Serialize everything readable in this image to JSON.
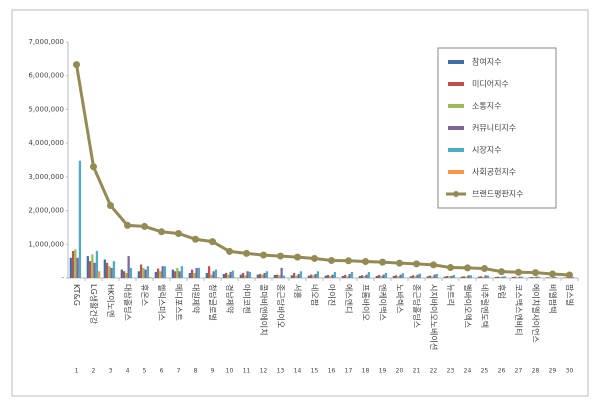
{
  "chart_data": {
    "type": "bar-line",
    "categories": [
      "KT&G",
      "LG생활건강",
      "HK이노엔",
      "대상홀딩스",
      "휴온스",
      "헬릭스미스",
      "메디포스트",
      "대원제약",
      "청담글로벌",
      "경남제약",
      "아미코젠",
      "콜마비앤에이치",
      "종근당바이오",
      "서흥",
      "네오팜",
      "아이진",
      "에스엔디",
      "프롬바이오",
      "엔케이맥스",
      "노바렉스",
      "종근당홀딩스",
      "시지바이오노베이션",
      "뉴트리",
      "벨바이오엑스",
      "네추럴엔도텍",
      "휴럼",
      "코스맥스엔비티",
      "에이치엘사이언스",
      "비엘팜텍",
      "팜스빌"
    ],
    "ranks": [
      1,
      2,
      3,
      4,
      5,
      6,
      7,
      8,
      9,
      10,
      11,
      12,
      13,
      14,
      15,
      16,
      17,
      18,
      19,
      20,
      21,
      22,
      23,
      24,
      25,
      26,
      27,
      28,
      29,
      30
    ],
    "series": [
      {
        "name": "참여지수",
        "color": "#3f6fa8",
        "kind": "bar",
        "values": [
          600000,
          650000,
          550000,
          250000,
          200000,
          180000,
          250000,
          150000,
          150000,
          120000,
          100000,
          100000,
          90000,
          80000,
          70000,
          70000,
          60000,
          60000,
          60000,
          60000,
          50000,
          50000,
          40000,
          40000,
          40000,
          30000,
          30000,
          20000,
          20000,
          10000
        ]
      },
      {
        "name": "미디어지수",
        "color": "#c0504d",
        "kind": "bar",
        "values": [
          800000,
          500000,
          450000,
          200000,
          400000,
          280000,
          200000,
          250000,
          350000,
          150000,
          150000,
          120000,
          100000,
          150000,
          100000,
          90000,
          90000,
          80000,
          90000,
          80000,
          80000,
          70000,
          60000,
          50000,
          50000,
          40000,
          40000,
          30000,
          20000,
          20000
        ]
      },
      {
        "name": "소통지수",
        "color": "#9bbb59",
        "kind": "bar",
        "values": [
          850000,
          700000,
          350000,
          150000,
          300000,
          200000,
          300000,
          150000,
          100000,
          100000,
          80000,
          100000,
          80000,
          70000,
          80000,
          60000,
          50000,
          60000,
          60000,
          50000,
          50000,
          40000,
          50000,
          40000,
          30000,
          30000,
          20000,
          30000,
          20000,
          10000
        ]
      },
      {
        "name": "커뮤니티지수",
        "color": "#8064a2",
        "kind": "bar",
        "values": [
          600000,
          450000,
          300000,
          650000,
          250000,
          350000,
          200000,
          300000,
          200000,
          180000,
          200000,
          150000,
          300000,
          120000,
          120000,
          100000,
          120000,
          100000,
          100000,
          100000,
          100000,
          100000,
          60000,
          80000,
          80000,
          40000,
          40000,
          40000,
          30000,
          20000
        ]
      },
      {
        "name": "시장지수",
        "color": "#4bacc6",
        "kind": "bar",
        "values": [
          3480000,
          800000,
          500000,
          300000,
          350000,
          350000,
          350000,
          300000,
          250000,
          220000,
          180000,
          200000,
          70000,
          200000,
          200000,
          180000,
          180000,
          180000,
          150000,
          140000,
          130000,
          120000,
          90000,
          80000,
          70000,
          50000,
          40000,
          40000,
          30000,
          30000
        ]
      },
      {
        "name": "사회공헌지수",
        "color": "#f79646",
        "kind": "bar",
        "values": [
          0,
          200000,
          0,
          0,
          30000,
          0,
          0,
          0,
          30000,
          20000,
          20000,
          10000,
          10000,
          0,
          10000,
          20000,
          10000,
          10000,
          10000,
          10000,
          10000,
          10000,
          10000,
          10000,
          10000,
          0,
          0,
          0,
          0,
          0
        ]
      },
      {
        "name": "브랜드평판지수",
        "color": "#948a54",
        "kind": "line",
        "values": [
          6330000,
          3300000,
          2150000,
          1560000,
          1530000,
          1370000,
          1320000,
          1150000,
          1080000,
          790000,
          730000,
          680000,
          650000,
          620000,
          580000,
          520000,
          510000,
          490000,
          470000,
          440000,
          420000,
          390000,
          310000,
          300000,
          280000,
          190000,
          170000,
          160000,
          120000,
          90000
        ]
      }
    ],
    "ylim": [
      0,
      7000000
    ],
    "yticks": [
      {
        "value": 0,
        "label": "-"
      },
      {
        "value": 1000000,
        "label": "1,000,000"
      },
      {
        "value": 2000000,
        "label": "2,000,000"
      },
      {
        "value": 3000000,
        "label": "3,000,000"
      },
      {
        "value": 4000000,
        "label": "4,000,000"
      },
      {
        "value": 5000000,
        "label": "5,000,000"
      },
      {
        "value": 6000000,
        "label": "6,000,000"
      },
      {
        "value": 7000000,
        "label": "7,000,000"
      }
    ],
    "legend": "upper right"
  }
}
